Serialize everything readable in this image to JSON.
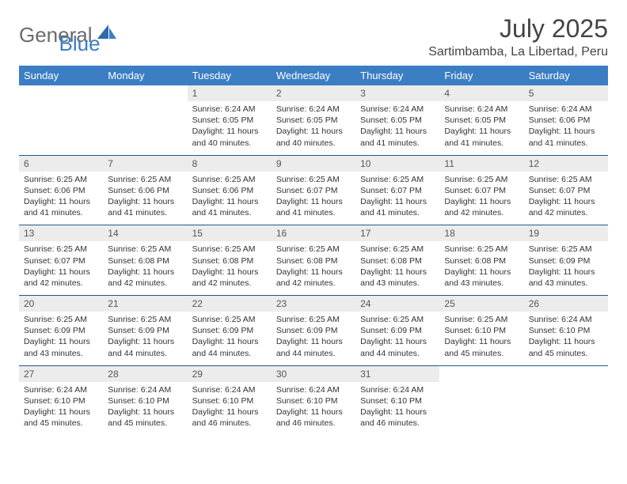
{
  "logo": {
    "part1": "General",
    "part2": "Blue"
  },
  "title": "July 2025",
  "location": "Sartimbamba, La Libertad, Peru",
  "colors": {
    "header_bg": "#3b7ec4",
    "header_text": "#ffffff",
    "daynum_bg": "#ececec",
    "week_border": "#1f5a8c",
    "logo_gray": "#6b6b6b",
    "logo_blue": "#3b7ec4"
  },
  "dayNames": [
    "Sunday",
    "Monday",
    "Tuesday",
    "Wednesday",
    "Thursday",
    "Friday",
    "Saturday"
  ],
  "weeks": [
    [
      null,
      null,
      {
        "n": "1",
        "sr": "Sunrise: 6:24 AM",
        "ss": "Sunset: 6:05 PM",
        "dl": "Daylight: 11 hours and 40 minutes."
      },
      {
        "n": "2",
        "sr": "Sunrise: 6:24 AM",
        "ss": "Sunset: 6:05 PM",
        "dl": "Daylight: 11 hours and 40 minutes."
      },
      {
        "n": "3",
        "sr": "Sunrise: 6:24 AM",
        "ss": "Sunset: 6:05 PM",
        "dl": "Daylight: 11 hours and 41 minutes."
      },
      {
        "n": "4",
        "sr": "Sunrise: 6:24 AM",
        "ss": "Sunset: 6:05 PM",
        "dl": "Daylight: 11 hours and 41 minutes."
      },
      {
        "n": "5",
        "sr": "Sunrise: 6:24 AM",
        "ss": "Sunset: 6:06 PM",
        "dl": "Daylight: 11 hours and 41 minutes."
      }
    ],
    [
      {
        "n": "6",
        "sr": "Sunrise: 6:25 AM",
        "ss": "Sunset: 6:06 PM",
        "dl": "Daylight: 11 hours and 41 minutes."
      },
      {
        "n": "7",
        "sr": "Sunrise: 6:25 AM",
        "ss": "Sunset: 6:06 PM",
        "dl": "Daylight: 11 hours and 41 minutes."
      },
      {
        "n": "8",
        "sr": "Sunrise: 6:25 AM",
        "ss": "Sunset: 6:06 PM",
        "dl": "Daylight: 11 hours and 41 minutes."
      },
      {
        "n": "9",
        "sr": "Sunrise: 6:25 AM",
        "ss": "Sunset: 6:07 PM",
        "dl": "Daylight: 11 hours and 41 minutes."
      },
      {
        "n": "10",
        "sr": "Sunrise: 6:25 AM",
        "ss": "Sunset: 6:07 PM",
        "dl": "Daylight: 11 hours and 41 minutes."
      },
      {
        "n": "11",
        "sr": "Sunrise: 6:25 AM",
        "ss": "Sunset: 6:07 PM",
        "dl": "Daylight: 11 hours and 42 minutes."
      },
      {
        "n": "12",
        "sr": "Sunrise: 6:25 AM",
        "ss": "Sunset: 6:07 PM",
        "dl": "Daylight: 11 hours and 42 minutes."
      }
    ],
    [
      {
        "n": "13",
        "sr": "Sunrise: 6:25 AM",
        "ss": "Sunset: 6:07 PM",
        "dl": "Daylight: 11 hours and 42 minutes."
      },
      {
        "n": "14",
        "sr": "Sunrise: 6:25 AM",
        "ss": "Sunset: 6:08 PM",
        "dl": "Daylight: 11 hours and 42 minutes."
      },
      {
        "n": "15",
        "sr": "Sunrise: 6:25 AM",
        "ss": "Sunset: 6:08 PM",
        "dl": "Daylight: 11 hours and 42 minutes."
      },
      {
        "n": "16",
        "sr": "Sunrise: 6:25 AM",
        "ss": "Sunset: 6:08 PM",
        "dl": "Daylight: 11 hours and 42 minutes."
      },
      {
        "n": "17",
        "sr": "Sunrise: 6:25 AM",
        "ss": "Sunset: 6:08 PM",
        "dl": "Daylight: 11 hours and 43 minutes."
      },
      {
        "n": "18",
        "sr": "Sunrise: 6:25 AM",
        "ss": "Sunset: 6:08 PM",
        "dl": "Daylight: 11 hours and 43 minutes."
      },
      {
        "n": "19",
        "sr": "Sunrise: 6:25 AM",
        "ss": "Sunset: 6:09 PM",
        "dl": "Daylight: 11 hours and 43 minutes."
      }
    ],
    [
      {
        "n": "20",
        "sr": "Sunrise: 6:25 AM",
        "ss": "Sunset: 6:09 PM",
        "dl": "Daylight: 11 hours and 43 minutes."
      },
      {
        "n": "21",
        "sr": "Sunrise: 6:25 AM",
        "ss": "Sunset: 6:09 PM",
        "dl": "Daylight: 11 hours and 44 minutes."
      },
      {
        "n": "22",
        "sr": "Sunrise: 6:25 AM",
        "ss": "Sunset: 6:09 PM",
        "dl": "Daylight: 11 hours and 44 minutes."
      },
      {
        "n": "23",
        "sr": "Sunrise: 6:25 AM",
        "ss": "Sunset: 6:09 PM",
        "dl": "Daylight: 11 hours and 44 minutes."
      },
      {
        "n": "24",
        "sr": "Sunrise: 6:25 AM",
        "ss": "Sunset: 6:09 PM",
        "dl": "Daylight: 11 hours and 44 minutes."
      },
      {
        "n": "25",
        "sr": "Sunrise: 6:25 AM",
        "ss": "Sunset: 6:10 PM",
        "dl": "Daylight: 11 hours and 45 minutes."
      },
      {
        "n": "26",
        "sr": "Sunrise: 6:24 AM",
        "ss": "Sunset: 6:10 PM",
        "dl": "Daylight: 11 hours and 45 minutes."
      }
    ],
    [
      {
        "n": "27",
        "sr": "Sunrise: 6:24 AM",
        "ss": "Sunset: 6:10 PM",
        "dl": "Daylight: 11 hours and 45 minutes."
      },
      {
        "n": "28",
        "sr": "Sunrise: 6:24 AM",
        "ss": "Sunset: 6:10 PM",
        "dl": "Daylight: 11 hours and 45 minutes."
      },
      {
        "n": "29",
        "sr": "Sunrise: 6:24 AM",
        "ss": "Sunset: 6:10 PM",
        "dl": "Daylight: 11 hours and 46 minutes."
      },
      {
        "n": "30",
        "sr": "Sunrise: 6:24 AM",
        "ss": "Sunset: 6:10 PM",
        "dl": "Daylight: 11 hours and 46 minutes."
      },
      {
        "n": "31",
        "sr": "Sunrise: 6:24 AM",
        "ss": "Sunset: 6:10 PM",
        "dl": "Daylight: 11 hours and 46 minutes."
      },
      null,
      null
    ]
  ]
}
